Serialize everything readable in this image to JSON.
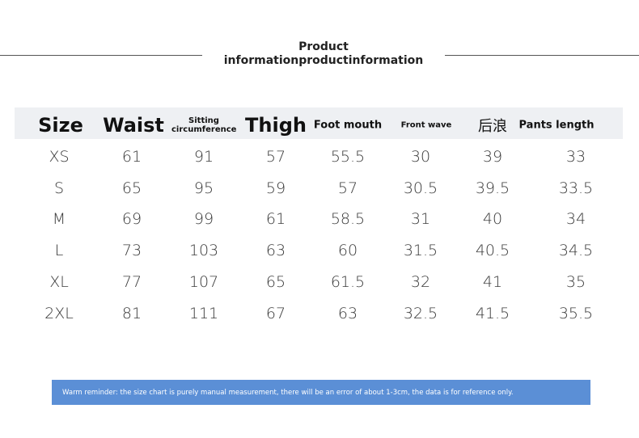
{
  "header": {
    "title_lines": [
      "Product",
      "informationproductinformation"
    ]
  },
  "table": {
    "columns": [
      "Size",
      "Waist",
      "Sitting circumference",
      "Thigh",
      "Foot mouth",
      "Front wave",
      "后浪",
      "Pants length"
    ],
    "rows": [
      [
        "XS",
        61,
        91,
        57,
        55.5,
        30,
        39,
        33
      ],
      [
        "S",
        65,
        95,
        59,
        57,
        30.5,
        39.5,
        33.5
      ],
      [
        "M",
        69,
        99,
        61,
        58.5,
        31,
        40,
        34
      ],
      [
        "L",
        73,
        103,
        63,
        60,
        31.5,
        40.5,
        34.5
      ],
      [
        "XL",
        77,
        107,
        65,
        61.5,
        32,
        41,
        35
      ],
      [
        "2XL",
        81,
        111,
        67,
        63,
        32.5,
        41.5,
        35.5
      ]
    ]
  },
  "footer": {
    "note": "Warm reminder: the size chart is purely manual measurement, there will be an error of about 1-3cm, the data is for reference only."
  }
}
